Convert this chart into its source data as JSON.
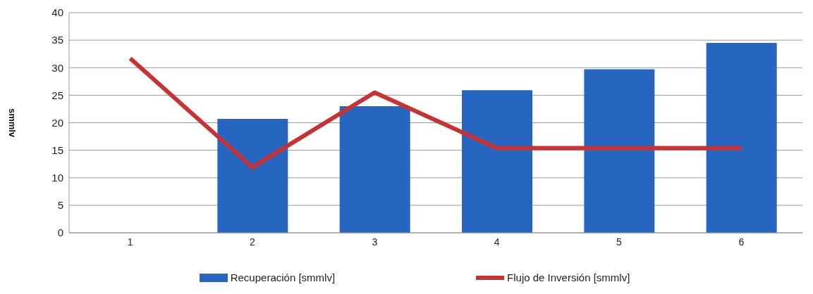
{
  "chart_data": {
    "type": "bar",
    "ylabel": "smmlv",
    "categories": [
      "1",
      "2",
      "3",
      "4",
      "5",
      "6"
    ],
    "series": [
      {
        "name": "Recuperación [smmlv]",
        "color": "#2766c0",
        "values": [
          null,
          20.7,
          23,
          25.9,
          29.7,
          34.5
        ]
      },
      {
        "name": "Flujo de Inversión [smmlv]",
        "type": "line",
        "color": "#c83232",
        "values": [
          31.7,
          11.9,
          25.5,
          15.4,
          15.4,
          15.4
        ]
      }
    ],
    "ylim": [
      0,
      40
    ],
    "yticks": [
      0,
      5,
      10,
      15,
      20,
      25,
      30,
      35,
      40
    ],
    "grid": "y",
    "legend": "bottom",
    "marker": "none"
  }
}
